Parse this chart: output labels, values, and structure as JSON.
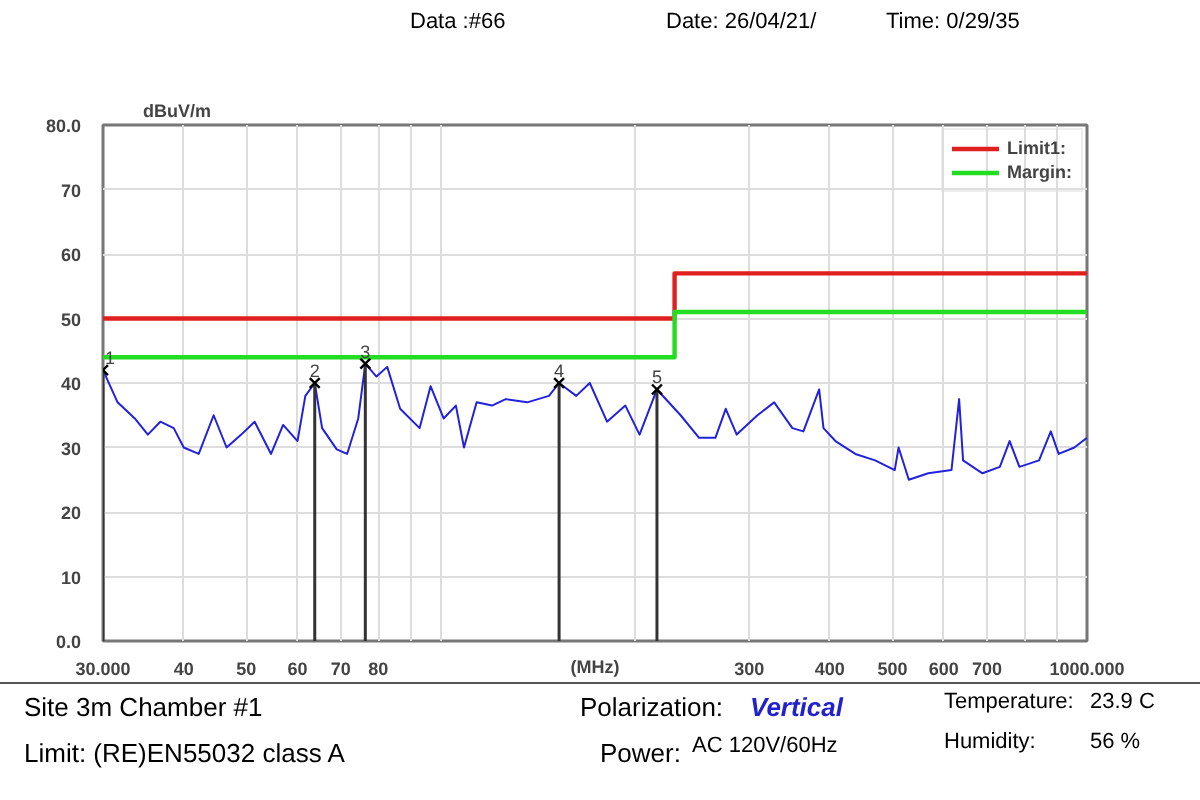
{
  "chart_data": {
    "type": "line",
    "xlabel": "(MHz)",
    "ylabel": "dBuV/m",
    "log": "x",
    "xlim": [
      30,
      1000
    ],
    "ylim": [
      0,
      80
    ],
    "xticks": [
      {
        "value": 30,
        "label": "30.000"
      },
      40,
      50,
      60,
      70,
      80,
      {
        "value": 90,
        "label": null
      },
      {
        "value": 100,
        "label": null
      },
      {
        "value": 200,
        "label": null
      },
      300,
      400,
      500,
      600,
      700,
      {
        "value": 800,
        "label": null
      },
      {
        "value": 900,
        "label": null
      },
      {
        "value": 1000,
        "label": "1000.000"
      }
    ],
    "yticks": [
      {
        "value": 0,
        "label": "0.0"
      },
      10,
      20,
      30,
      40,
      50,
      60,
      70,
      {
        "value": 80,
        "label": "80.0"
      }
    ],
    "grid": true,
    "legend": "top right",
    "series": [
      {
        "color": "#2222dd",
        "x": [
          30,
          31.6,
          33.6,
          35.2,
          36.8,
          38.6,
          40,
          42.2,
          44.5,
          46.6,
          49.1,
          51.5,
          54.6,
          57,
          60,
          61.7,
          63.8,
          65.5,
          69,
          71.6,
          74.5,
          76.4,
          79.5,
          82.6,
          86.5,
          92.7,
          96.4,
          101,
          105.5,
          108.6,
          113.6,
          120,
          126,
          136,
          147,
          152.4,
          162,
          170,
          180.8,
          193,
          203,
          216,
          235,
          251,
          266,
          276,
          287,
          309,
          328,
          350,
          364,
          385,
          391,
          408,
          438,
          470,
          504,
          511,
          530,
          568,
          617,
          634,
          643,
          689,
          733,
          759,
          786,
          843,
          879,
          904,
          956,
          1000
        ],
        "values": [
          42,
          37,
          34.5,
          32,
          34,
          33,
          30,
          29,
          35,
          30,
          32,
          34,
          29,
          33.5,
          31,
          38,
          40,
          33,
          29.7,
          29,
          34.5,
          43,
          41,
          42.5,
          36,
          33,
          39.5,
          34.5,
          36.5,
          30,
          37,
          36.5,
          37.5,
          37,
          38,
          40,
          38,
          40,
          34,
          36.5,
          32,
          39,
          35,
          31.5,
          31.5,
          36,
          32,
          35,
          37,
          33,
          32.5,
          39,
          33,
          31,
          29,
          28,
          26.5,
          30,
          25,
          26,
          26.5,
          37.5,
          28,
          26,
          27,
          31,
          27,
          28,
          32.5,
          29,
          30,
          31.5
        ]
      },
      {
        "name": "Limit1:",
        "color": "#e02020",
        "x": [
          30,
          230,
          230,
          1000
        ],
        "values": [
          50,
          50,
          57,
          57
        ]
      },
      {
        "name": "Margin:",
        "color": "#22dd22",
        "x": [
          30,
          230,
          230,
          1000
        ],
        "values": [
          44,
          44,
          51,
          51
        ]
      }
    ],
    "annotations": [
      {
        "text": "1",
        "x": 30,
        "y": 42
      },
      {
        "text": "2",
        "x": 63.8,
        "y": 40
      },
      {
        "text": "3",
        "x": 76.4,
        "y": 43
      },
      {
        "text": "4",
        "x": 152.4,
        "y": 40
      },
      {
        "text": "5",
        "x": 216,
        "y": 39
      },
      "Data :#66",
      "Date: 26/04/21/",
      "Time: 0/29/35",
      "Site  3m Chamber #1",
      "Limit:  (RE)EN55032 class A",
      "Polarization:",
      "Vertical",
      "Power:",
      "AC 120V/60Hz",
      "Temperature:",
      "23.9 C",
      "Humidity:",
      "56 %"
    ]
  }
}
